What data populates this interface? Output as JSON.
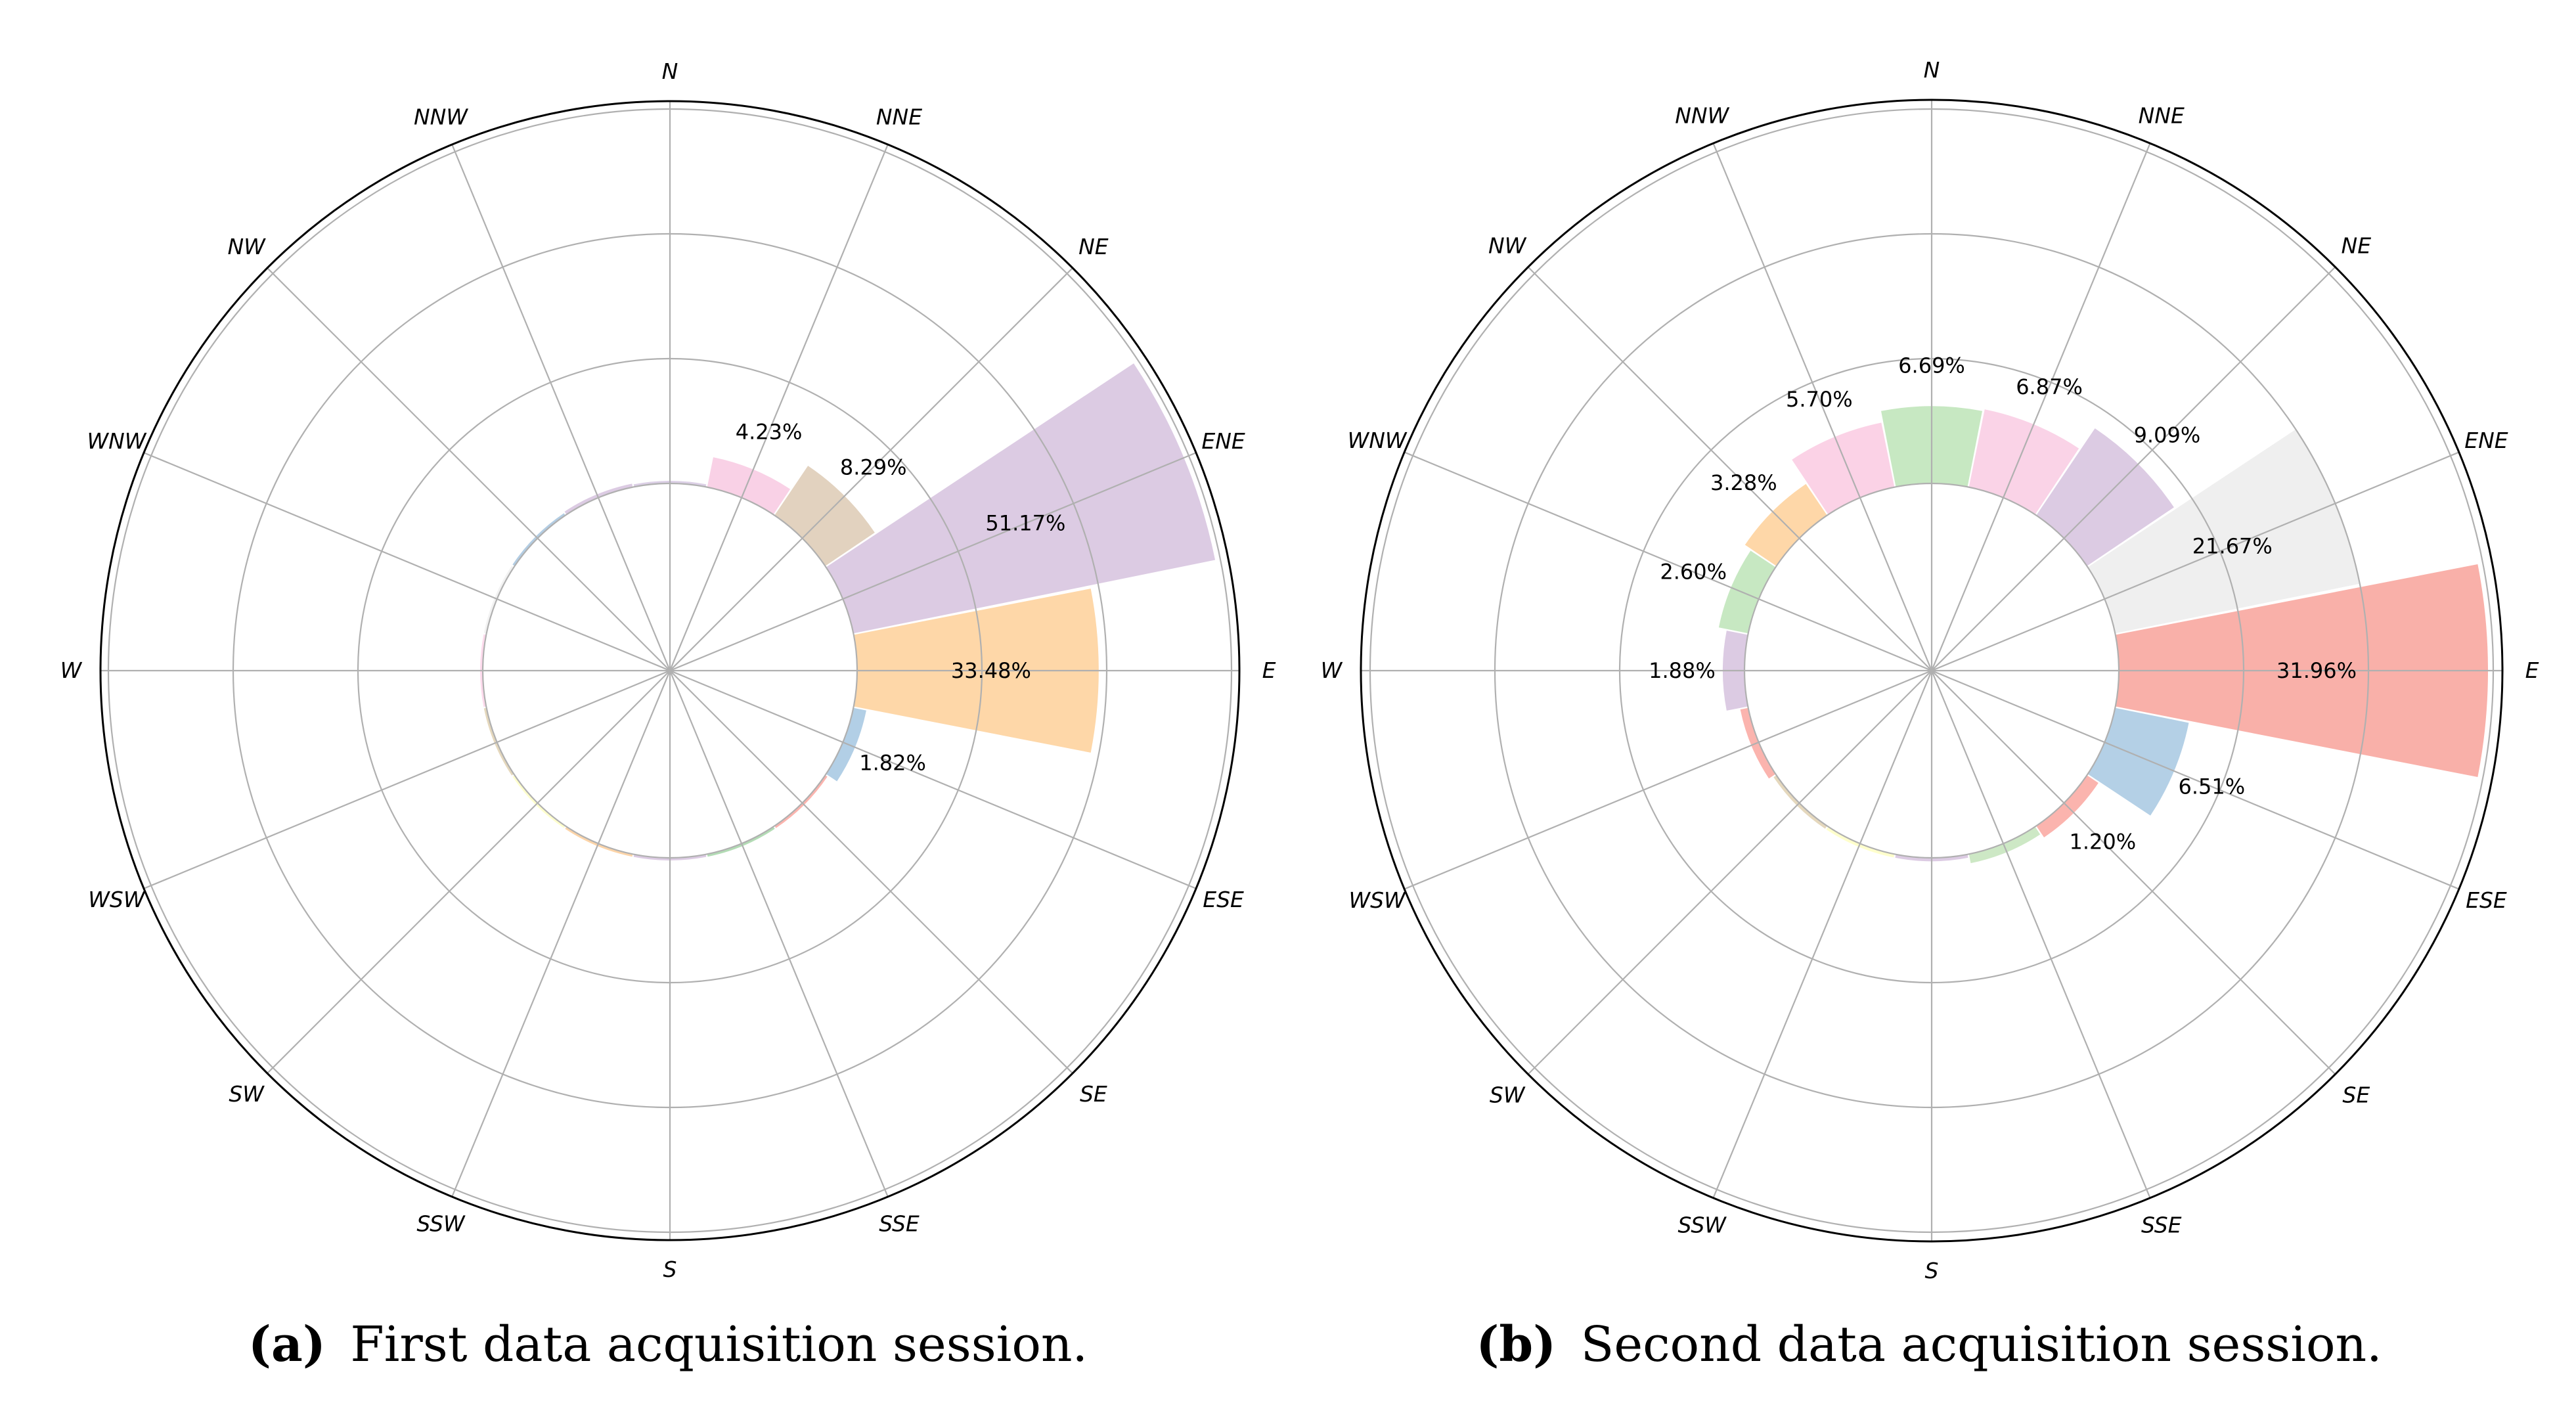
{
  "figure": {
    "captions": [
      {
        "letter": "(a)",
        "text": "First data acquisition session."
      },
      {
        "letter": "(b)",
        "text": "Second data acquisition session."
      }
    ]
  },
  "chart_data": [
    {
      "type": "polar-bar",
      "title": "First data acquisition session.",
      "panel_label": "(a)",
      "directions": [
        "N",
        "NNE",
        "NE",
        "ENE",
        "E",
        "ESE",
        "SE",
        "SSE",
        "S",
        "SSW",
        "SW",
        "WSW",
        "W",
        "WNW",
        "NW",
        "NNW"
      ],
      "radial_rings": 5,
      "values": [
        0.2,
        4.23,
        8.29,
        51.17,
        33.48,
        1.82,
        0,
        0,
        0,
        0,
        0,
        0,
        0,
        0,
        0,
        0.5
      ],
      "percent_labels": [
        {
          "direction": "NNE",
          "text": "4.23%"
        },
        {
          "direction": "NE",
          "text": "8.29%"
        },
        {
          "direction": "ENE",
          "text": "51.17%"
        },
        {
          "direction": "E",
          "text": "33.48%"
        },
        {
          "direction": "ESE",
          "text": "1.82%"
        }
      ],
      "colors": [
        "#dcd0e6",
        "#f9d1e6",
        "#e2d2bf",
        "#dccbe3",
        "#fed7a8",
        "#b2cfe6",
        "#fbb4ae",
        "#b3dcb5",
        "#dccbe3",
        "#fcd4a8",
        "#ffffcc",
        "#e5d8bd",
        "#fddaec",
        "#f2f2f2",
        "#b3cde3",
        "#dccbe3"
      ]
    },
    {
      "type": "polar-bar",
      "title": "Second data acquisition session.",
      "panel_label": "(b)",
      "directions": [
        "N",
        "NNE",
        "NE",
        "ENE",
        "E",
        "ESE",
        "SE",
        "SSE",
        "S",
        "SSW",
        "SW",
        "WSW",
        "W",
        "WNW",
        "NW",
        "NNW"
      ],
      "radial_rings": 5,
      "values": [
        6.69,
        6.87,
        9.09,
        21.67,
        31.96,
        6.51,
        1.2,
        0.8,
        0.3,
        0.3,
        0.3,
        0.7,
        1.88,
        2.6,
        3.28,
        5.7
      ],
      "percent_labels": [
        {
          "direction": "N",
          "text": "6.69%"
        },
        {
          "direction": "NNE",
          "text": "6.87%"
        },
        {
          "direction": "NE",
          "text": "9.09%"
        },
        {
          "direction": "ENE",
          "text": "21.67%"
        },
        {
          "direction": "E",
          "text": "31.96%"
        },
        {
          "direction": "ESE",
          "text": "6.51%"
        },
        {
          "direction": "SE",
          "text": "1.20%"
        },
        {
          "direction": "W",
          "text": "1.88%"
        },
        {
          "direction": "WNW",
          "text": "2.60%"
        },
        {
          "direction": "NW",
          "text": "3.28%"
        },
        {
          "direction": "NNW",
          "text": "5.70%"
        }
      ],
      "colors": [
        "#c7e8c2",
        "#fad3e7",
        "#dccbe3",
        "#efefef",
        "#f9b0a9",
        "#b4d0e6",
        "#fbb4ae",
        "#cde8c5",
        "#dccbe3",
        "#ffffcc",
        "#e5d8bd",
        "#fbb4ae",
        "#dccbe3",
        "#c7e8c2",
        "#fed7a8",
        "#fbd2e6"
      ]
    }
  ]
}
